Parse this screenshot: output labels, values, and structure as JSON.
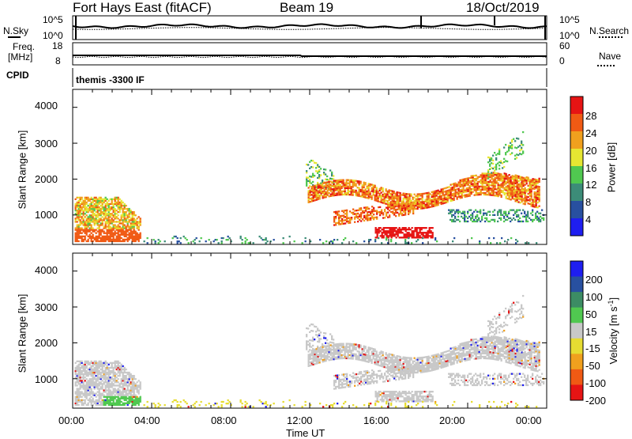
{
  "header": {
    "radar": "Fort Hays East (fitACF)",
    "beam": "Beam 19",
    "date": "18/Oct/2019"
  },
  "summary": {
    "nsky_label": "N.Sky",
    "nsky_ticks": [
      "10^5",
      "10^0"
    ],
    "nsearch_label": "N.Search",
    "nsearch_ticks": [
      "10^5",
      "10^0"
    ],
    "freq_label_1": "Freq.",
    "freq_label_2": "[MHz]",
    "freq_ticks": [
      "18",
      "8"
    ],
    "nave_label": "Nave",
    "nave_ticks": [
      "60",
      "0"
    ],
    "cpid_label": "CPID",
    "cpid_text": "themis -3300 IF"
  },
  "colors": {
    "power": [
      "#1e1ef0",
      "#2850a0",
      "#3c8c78",
      "#50c850",
      "#e6e632",
      "#f0a01e",
      "#f05a14",
      "#e61414"
    ],
    "velocity": [
      "#1e1ef0",
      "#2850a0",
      "#3c8c64",
      "#50c850",
      "#c8c8c8",
      "#e6dc32",
      "#f0a01e",
      "#f05a14",
      "#e61414"
    ],
    "ground_scatter": "#c8c8c8"
  },
  "chart_data": [
    {
      "type": "heatmap",
      "name": "power-panel",
      "ylabel": "Slant Range [km]",
      "ylim": [
        180,
        4500
      ],
      "xlim_hours": [
        0,
        24
      ],
      "y_ticks": [
        "1000",
        "2000",
        "3000",
        "4000"
      ],
      "y_tick_values": [
        1000,
        2000,
        3000,
        4000
      ],
      "colorbar": {
        "label": "Power [dB]",
        "ticks": [
          "4",
          "8",
          "12",
          "16",
          "20",
          "24",
          "28"
        ],
        "tick_values": [
          4,
          8,
          12,
          16,
          20,
          24,
          28
        ],
        "range": [
          0,
          32
        ]
      }
    },
    {
      "type": "heatmap",
      "name": "velocity-panel",
      "ylabel": "Slant Range [km]",
      "xlabel": "Time UT",
      "ylim": [
        180,
        4500
      ],
      "xlim_hours": [
        0,
        24
      ],
      "x_ticks": [
        "00:00",
        "04:00",
        "08:00",
        "12:00",
        "16:00",
        "20:00",
        "00:00"
      ],
      "x_tick_values": [
        0,
        4,
        8,
        12,
        16,
        20,
        24
      ],
      "y_ticks": [
        "1000",
        "2000",
        "3000",
        "4000"
      ],
      "y_tick_values": [
        1000,
        2000,
        3000,
        4000
      ],
      "colorbar": {
        "label_main": "Velocity [m s",
        "label_sup": "-1",
        "label_end": "]",
        "ticks": [
          "200",
          "100",
          "50",
          "15",
          "-15",
          "-50",
          "-100",
          "-200"
        ]
      }
    }
  ]
}
